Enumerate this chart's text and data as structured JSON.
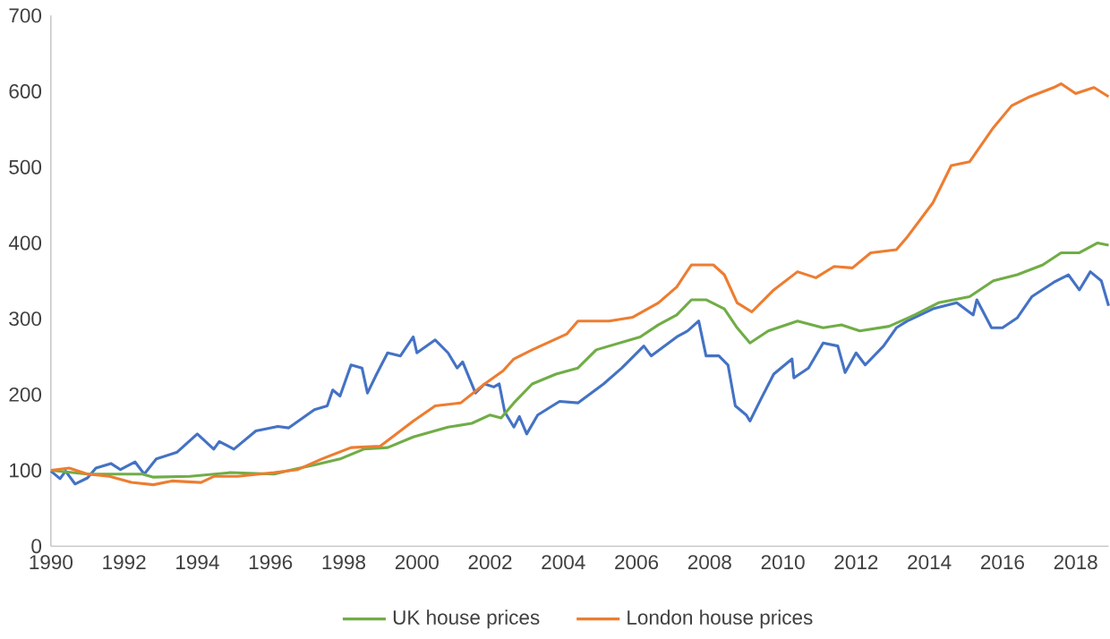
{
  "chart_data": {
    "type": "line",
    "xlim": [
      1990,
      2018.9
    ],
    "ylim": [
      0,
      700
    ],
    "xticks": [
      1990,
      1992,
      1994,
      1996,
      1998,
      2000,
      2002,
      2004,
      2006,
      2008,
      2010,
      2012,
      2014,
      2016,
      2018
    ],
    "yticks": [
      0,
      100,
      200,
      300,
      400,
      500,
      600,
      700
    ],
    "grid": false,
    "legend": "bottom",
    "marker": "none",
    "line_style": "solid",
    "series": [
      {
        "color": "#4472c4",
        "x": [
          1990.0,
          1990.25,
          1990.4,
          1990.66,
          1991.0,
          1991.23,
          1991.64,
          1991.9,
          1992.3,
          1992.55,
          1992.88,
          1993.45,
          1994.0,
          1994.45,
          1994.6,
          1995.0,
          1995.6,
          1996.2,
          1996.5,
          1997.2,
          1997.55,
          1997.7,
          1997.9,
          1998.2,
          1998.5,
          1998.65,
          1998.9,
          1999.2,
          1999.55,
          1999.9,
          2000.0,
          2000.5,
          2000.85,
          2001.1,
          2001.25,
          2001.6,
          2001.85,
          2002.1,
          2002.25,
          2002.4,
          2002.65,
          2002.8,
          2003.0,
          2003.3,
          2003.7,
          2003.9,
          2004.4,
          2005.1,
          2005.6,
          2006.2,
          2006.4,
          2007.1,
          2007.4,
          2007.7,
          2007.9,
          2008.25,
          2008.5,
          2008.7,
          2009.0,
          2009.1,
          2009.4,
          2009.75,
          2010.25,
          2010.3,
          2010.7,
          2011.1,
          2011.5,
          2011.7,
          2012.0,
          2012.25,
          2012.75,
          2013.1,
          2013.4,
          2014.1,
          2014.75,
          2015.2,
          2015.3,
          2015.7,
          2016.0,
          2016.4,
          2016.8,
          2017.4,
          2017.8,
          2018.1,
          2018.4,
          2018.7,
          2018.9
        ],
        "values": [
          99,
          89,
          99,
          82,
          90,
          103,
          109,
          101,
          111,
          95,
          115,
          124,
          148,
          128,
          138,
          128,
          152,
          158,
          156,
          180,
          185,
          206,
          198,
          239,
          235,
          202,
          227,
          255,
          251,
          276,
          255,
          272,
          255,
          235,
          243,
          202,
          214,
          210,
          214,
          177,
          157,
          171,
          148,
          173,
          185,
          191,
          189,
          214,
          235,
          264,
          251,
          276,
          284,
          297,
          251,
          251,
          239,
          185,
          173,
          165,
          194,
          227,
          247,
          222,
          235,
          268,
          264,
          229,
          255,
          239,
          264,
          288,
          297,
          313,
          321,
          305,
          325,
          288,
          288,
          301,
          329,
          348,
          358,
          338,
          362,
          350,
          317
        ]
      },
      {
        "name": "UK house prices",
        "color": "#70ad47",
        "x": [
          1990.0,
          1991.0,
          1992.5,
          1992.8,
          1993.8,
          1994.9,
          1996.1,
          1996.6,
          1997.2,
          1997.9,
          1998.55,
          1999.2,
          1999.9,
          2000.85,
          2001.5,
          2002.0,
          2002.3,
          2002.65,
          2003.15,
          2003.8,
          2004.4,
          2004.9,
          2006.1,
          2006.6,
          2007.1,
          2007.5,
          2007.9,
          2008.4,
          2008.75,
          2009.1,
          2009.6,
          2010.4,
          2011.1,
          2011.6,
          2012.1,
          2012.9,
          2013.6,
          2014.25,
          2015.1,
          2015.75,
          2016.4,
          2017.1,
          2017.6,
          2018.1,
          2018.6,
          2018.9
        ],
        "values": [
          100,
          95,
          95,
          91,
          92,
          97,
          95,
          101,
          107,
          115,
          128,
          130,
          144,
          157,
          162,
          173,
          169,
          189,
          214,
          227,
          235,
          259,
          276,
          292,
          305,
          325,
          325,
          313,
          288,
          268,
          284,
          297,
          288,
          292,
          284,
          290,
          305,
          321,
          329,
          350,
          358,
          371,
          387,
          387,
          400,
          397
        ]
      },
      {
        "name": "London house prices",
        "color": "#ed7d31",
        "x": [
          1990.0,
          1990.5,
          1991.0,
          1991.6,
          1992.2,
          1992.8,
          1993.3,
          1994.1,
          1994.45,
          1995.1,
          1996.1,
          1996.75,
          1997.4,
          1998.2,
          1999.0,
          1999.9,
          2000.5,
          2001.2,
          2001.85,
          2002.35,
          2002.65,
          2003.15,
          2004.1,
          2004.4,
          2005.25,
          2005.9,
          2006.6,
          2007.1,
          2007.5,
          2008.1,
          2008.4,
          2008.75,
          2009.15,
          2009.75,
          2010.4,
          2010.9,
          2011.4,
          2011.9,
          2012.4,
          2013.1,
          2013.4,
          2014.1,
          2014.6,
          2015.1,
          2015.75,
          2016.25,
          2016.75,
          2017.4,
          2017.6,
          2018.0,
          2018.5,
          2018.9
        ],
        "values": [
          100,
          103,
          95,
          92,
          84,
          81,
          86,
          84,
          92,
          92,
          97,
          101,
          115,
          130,
          132,
          165,
          185,
          189,
          214,
          231,
          247,
          259,
          280,
          297,
          297,
          302,
          321,
          342,
          371,
          371,
          358,
          321,
          309,
          338,
          362,
          354,
          369,
          367,
          387,
          391,
          408,
          453,
          502,
          507,
          552,
          581,
          593,
          605,
          610,
          597,
          605,
          593
        ]
      }
    ]
  }
}
